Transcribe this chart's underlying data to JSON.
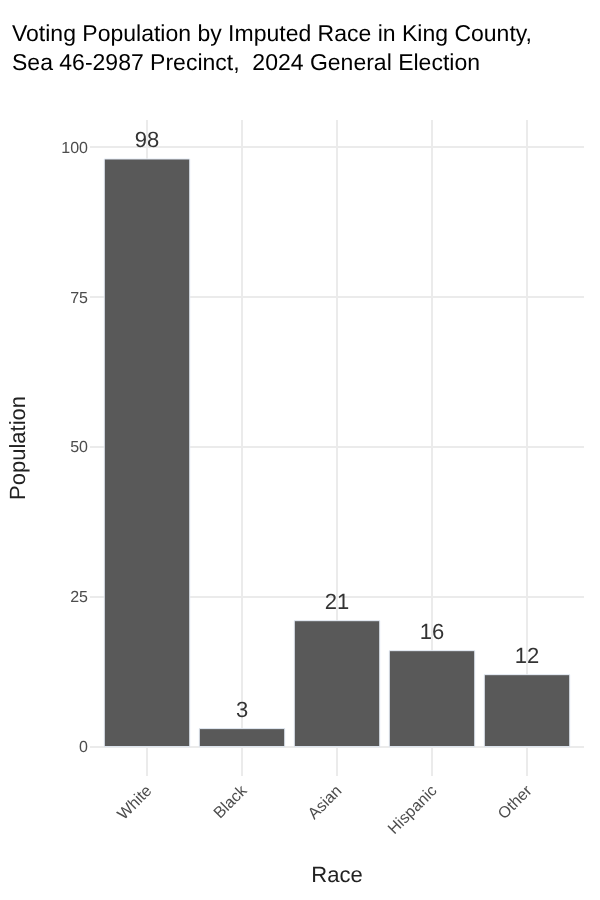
{
  "chart_data": {
    "type": "bar",
    "title": "Voting Population by Imputed Race in King County,\nSea 46-2987 Precinct,  2024 General Election",
    "xlabel": "Race",
    "ylabel": "Population",
    "categories": [
      "White",
      "Black",
      "Asian",
      "Hispanic",
      "Other"
    ],
    "values": [
      98,
      3,
      21,
      16,
      12
    ],
    "color": "#595959",
    "data_labels": true,
    "ylim": [
      -4.9,
      104.5
    ],
    "yticks": [
      0,
      25,
      50,
      75,
      100
    ],
    "grid": true
  }
}
